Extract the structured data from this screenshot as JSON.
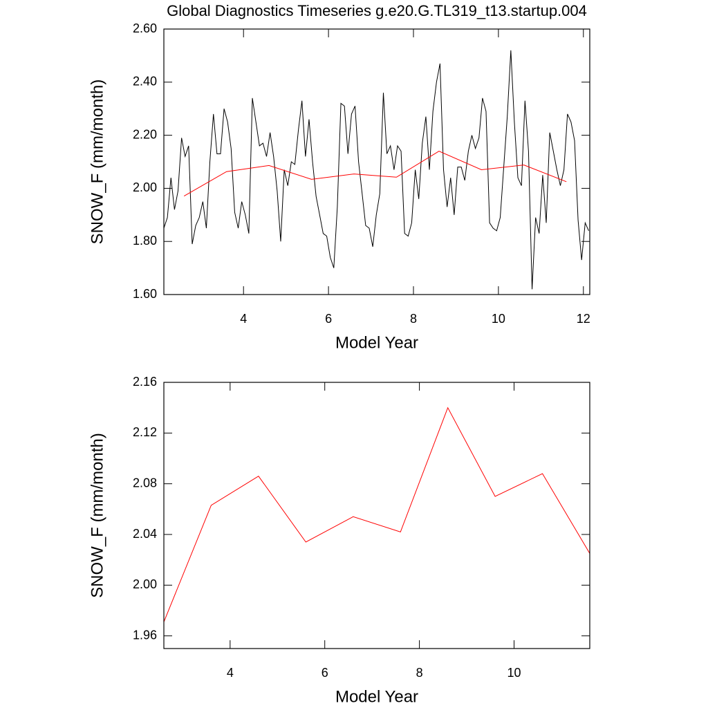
{
  "chart_data": [
    {
      "type": "line",
      "title": "Global Diagnostics Timeseries g.e20.G.TL319_t13.startup.004",
      "x_label": "Model Year",
      "y_label": "SNOW_F (mm/month)",
      "xlim": [
        2.125,
        12.15
      ],
      "ylim": [
        1.6,
        2.6
      ],
      "xticks": [
        4,
        6,
        8,
        10,
        12
      ],
      "yticks": [
        {
          "value": 1.6,
          "label": "1.60"
        },
        {
          "value": 1.8,
          "label": "1.80"
        },
        {
          "value": 2.0,
          "label": "2.00"
        },
        {
          "value": 2.2,
          "label": "2.20"
        },
        {
          "value": 2.4,
          "label": "2.40"
        },
        {
          "value": 2.6,
          "label": "2.60"
        }
      ],
      "series": [
        {
          "color": "#000000",
          "x": [
            2.125,
            2.208,
            2.292,
            2.375,
            2.458,
            2.542,
            2.625,
            2.708,
            2.792,
            2.875,
            2.958,
            3.042,
            3.125,
            3.208,
            3.292,
            3.375,
            3.458,
            3.542,
            3.625,
            3.708,
            3.792,
            3.875,
            3.958,
            4.042,
            4.125,
            4.208,
            4.292,
            4.375,
            4.458,
            4.542,
            4.625,
            4.708,
            4.792,
            4.875,
            4.958,
            5.042,
            5.125,
            5.208,
            5.292,
            5.375,
            5.458,
            5.542,
            5.625,
            5.708,
            5.792,
            5.875,
            5.958,
            6.042,
            6.125,
            6.208,
            6.292,
            6.375,
            6.458,
            6.542,
            6.625,
            6.708,
            6.792,
            6.875,
            6.958,
            7.042,
            7.125,
            7.208,
            7.292,
            7.375,
            7.458,
            7.542,
            7.625,
            7.708,
            7.792,
            7.875,
            7.958,
            8.042,
            8.125,
            8.208,
            8.292,
            8.375,
            8.458,
            8.542,
            8.625,
            8.708,
            8.792,
            8.875,
            8.958,
            9.042,
            9.125,
            9.208,
            9.292,
            9.375,
            9.458,
            9.542,
            9.625,
            9.708,
            9.792,
            9.875,
            9.958,
            10.042,
            10.125,
            10.208,
            10.292,
            10.375,
            10.458,
            10.542,
            10.625,
            10.708,
            10.792,
            10.875,
            10.958,
            11.042,
            11.125,
            11.208,
            11.292,
            11.375,
            11.458,
            11.542,
            11.625,
            11.708,
            11.792,
            11.875,
            11.958,
            12.042,
            12.125
          ],
          "values": [
            1.85,
            1.89,
            2.04,
            1.92,
            1.99,
            2.19,
            2.12,
            2.16,
            1.79,
            1.86,
            1.89,
            1.95,
            1.85,
            2.1,
            2.28,
            2.13,
            2.13,
            2.3,
            2.25,
            2.15,
            1.91,
            1.85,
            1.95,
            1.9,
            1.83,
            2.34,
            2.25,
            2.16,
            2.17,
            2.12,
            2.21,
            2.12,
            1.99,
            1.8,
            2.07,
            2.01,
            2.1,
            2.09,
            2.22,
            2.33,
            2.12,
            2.26,
            2.1,
            1.97,
            1.9,
            1.83,
            1.82,
            1.74,
            1.7,
            1.93,
            2.32,
            2.31,
            2.13,
            2.28,
            2.31,
            2.1,
            1.98,
            1.86,
            1.85,
            1.78,
            1.9,
            1.98,
            2.36,
            2.13,
            2.16,
            2.07,
            2.16,
            2.14,
            1.83,
            1.82,
            1.87,
            2.07,
            1.96,
            2.17,
            2.27,
            2.07,
            2.29,
            2.4,
            2.47,
            2.07,
            1.93,
            2.04,
            1.9,
            2.08,
            2.08,
            2.03,
            2.14,
            2.2,
            2.15,
            2.19,
            2.34,
            2.29,
            1.87,
            1.85,
            1.84,
            1.89,
            2.08,
            2.27,
            2.52,
            2.25,
            2.04,
            2.01,
            2.33,
            2.14,
            1.62,
            1.89,
            1.83,
            2.05,
            1.87,
            2.21,
            2.14,
            2.07,
            2.01,
            2.07,
            2.28,
            2.25,
            2.18,
            1.88,
            1.73,
            1.87,
            1.84
          ]
        },
        {
          "color": "#ff0000",
          "x": [
            2.6,
            3.6,
            4.6,
            5.6,
            6.6,
            7.6,
            8.6,
            9.6,
            10.6,
            11.6
          ],
          "values": [
            1.971,
            2.063,
            2.086,
            2.034,
            2.054,
            2.042,
            2.14,
            2.07,
            2.088,
            2.025
          ]
        }
      ]
    },
    {
      "type": "line",
      "x_label": "Model Year",
      "y_label": "SNOW_F (mm/month)",
      "xlim": [
        2.6,
        11.6
      ],
      "ylim": [
        1.95,
        2.16
      ],
      "xticks": [
        4,
        6,
        8,
        10
      ],
      "yticks": [
        {
          "value": 1.96,
          "label": "1.96"
        },
        {
          "value": 2.0,
          "label": "2.00"
        },
        {
          "value": 2.04,
          "label": "2.04"
        },
        {
          "value": 2.08,
          "label": "2.08"
        },
        {
          "value": 2.12,
          "label": "2.12"
        },
        {
          "value": 2.16,
          "label": "2.16"
        }
      ],
      "series": [
        {
          "color": "#ff0000",
          "x": [
            2.6,
            3.6,
            4.6,
            5.6,
            6.6,
            7.6,
            8.6,
            9.6,
            10.6,
            11.6
          ],
          "values": [
            1.971,
            2.063,
            2.086,
            2.034,
            2.054,
            2.042,
            2.14,
            2.07,
            2.088,
            2.025
          ]
        }
      ]
    }
  ]
}
